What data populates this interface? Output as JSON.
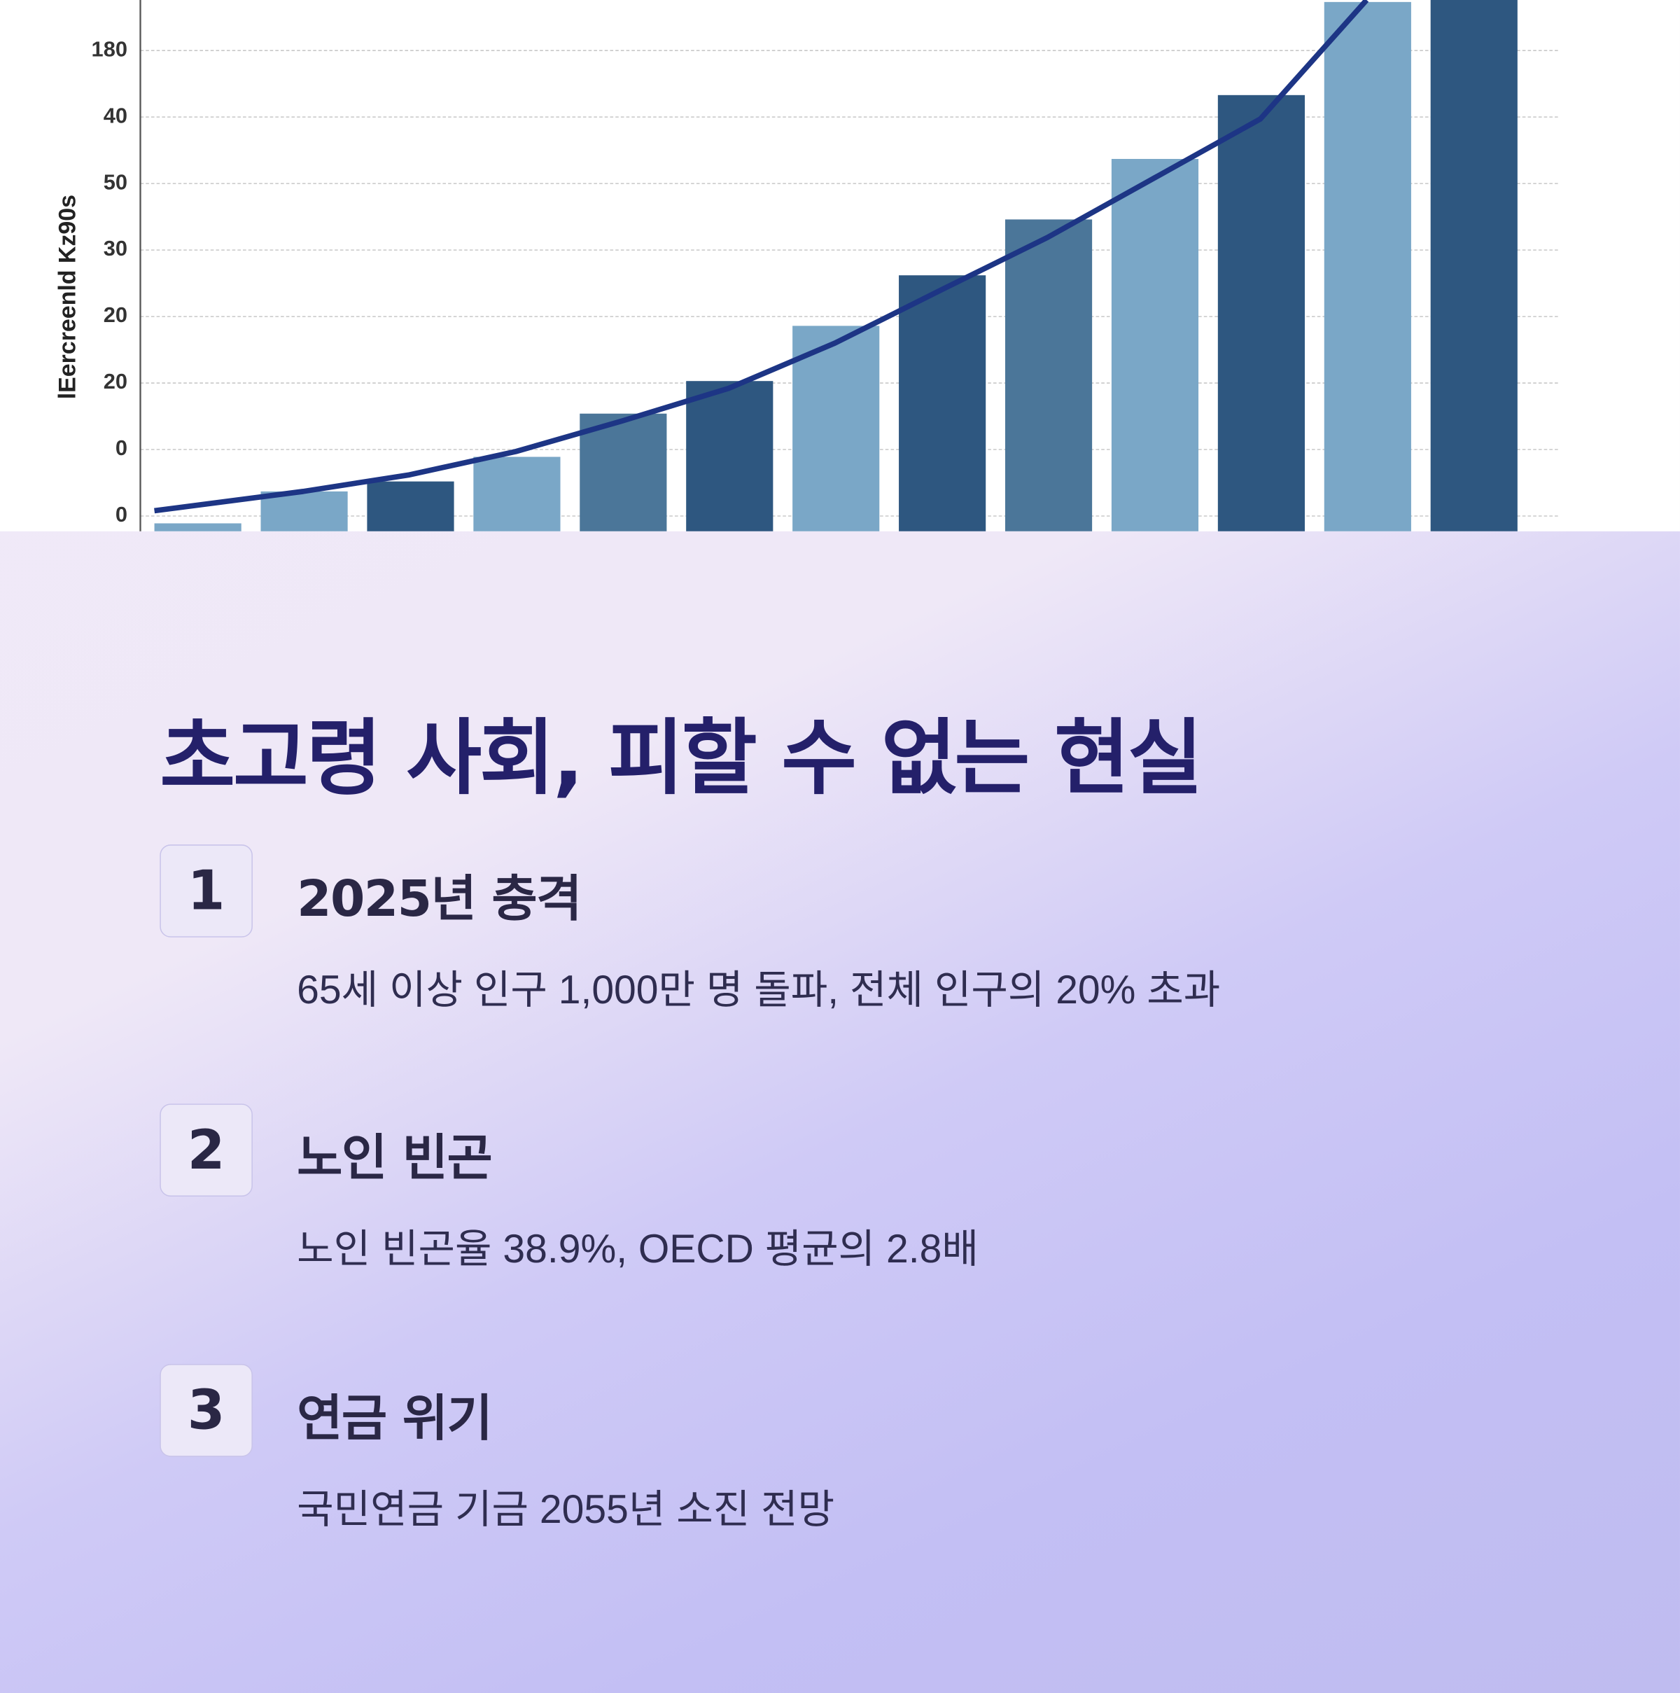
{
  "chart_data": {
    "type": "bar",
    "y_label": "lEercreenld Kz90s",
    "categories": [
      null,
      null,
      null,
      null,
      null,
      null,
      null,
      null,
      null,
      null,
      null,
      null,
      null
    ],
    "values": [
      -0.11,
      0.37,
      0.52,
      0.89,
      1.54,
      2.03,
      2.86,
      3.62,
      4.46,
      5.37,
      6.33,
      7.73,
      7.76
    ],
    "colors": [
      "#7aa7c7",
      "#7aa7c7",
      "#2e5780",
      "#7aa7c7",
      "#4b7699",
      "#2e5780",
      "#7aa7c7",
      "#2e5780",
      "#4b7699",
      "#7aa7c7",
      "#2e5780",
      "#7aa7c7",
      "#2e5780"
    ],
    "trend": {
      "color": "#1d3585",
      "values": [
        0.08,
        0.37,
        0.62,
        0.97,
        1.43,
        1.92,
        2.6,
        3.4,
        4.19,
        5.08,
        5.97,
        7.76,
        null
      ]
    },
    "ylim": [
      -0.23,
      7.76
    ],
    "yticks": [
      0,
      {
        "value": 1,
        "label": "0"
      },
      {
        "value": 2,
        "label": "20"
      },
      {
        "value": 3,
        "label": "20"
      },
      {
        "value": 4,
        "label": "30"
      },
      {
        "value": 5,
        "label": "50"
      },
      {
        "value": 6,
        "label": "40"
      },
      {
        "value": 7,
        "label": "180"
      }
    ],
    "grid": true
  },
  "content": {
    "title": "초고령 사회, 피할 수 없는 현실",
    "items": [
      {
        "number": "1",
        "heading": "2025년 충격",
        "text": "65세 이상 인구 1,000만 명 돌파, 전체 인구의 20% 초과"
      },
      {
        "number": "2",
        "heading": "노인 빈곤",
        "text": "노인 빈곤율 38.9%, OECD 평균의 2.8배"
      },
      {
        "number": "3",
        "heading": "연금 위기",
        "text": "국민연금 기금 2055년 소진 전망"
      }
    ]
  }
}
